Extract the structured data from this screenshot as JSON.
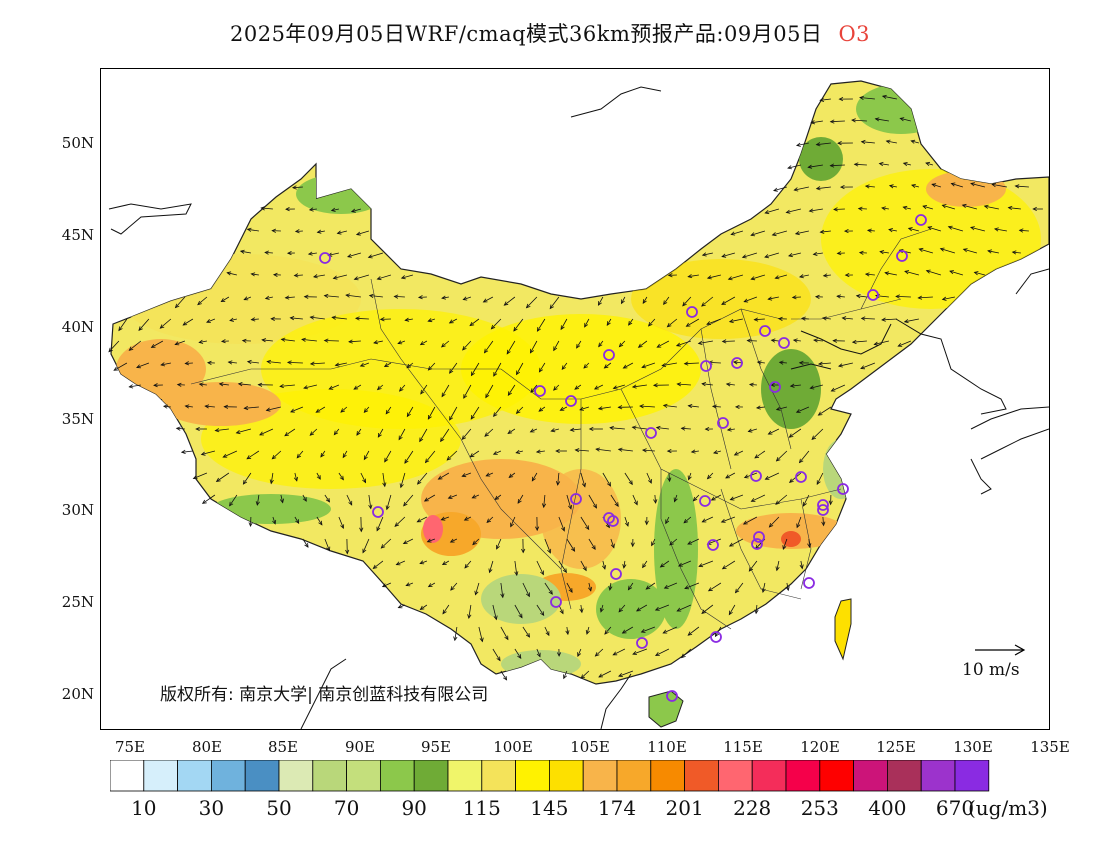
{
  "header": {
    "title": "2025年09月05日WRF/cmaq模式36km预报产品:09月05日",
    "pollutant": "O3",
    "pollutant_color": "#e8433a"
  },
  "map": {
    "lon_range": [
      73,
      135
    ],
    "lat_range": [
      18,
      54
    ],
    "lat_ticks": [
      "20N",
      "25N",
      "30N",
      "35N",
      "40N",
      "45N",
      "50N"
    ],
    "lon_ticks": [
      "75E",
      "80E",
      "85E",
      "90E",
      "95E",
      "100E",
      "105E",
      "110E",
      "115E",
      "120E",
      "125E",
      "130E",
      "135E"
    ],
    "copyright": "版权所有: 南京大学| 南京创蓝科技有限公司",
    "wind_scale_label": "10 m/s",
    "background_fill": "#f2e862",
    "monitor_marker_color": "#8a2be2"
  },
  "colorbar": {
    "unit": "(ug/m3)",
    "labels": [
      "10",
      "30",
      "50",
      "70",
      "90",
      "115",
      "145",
      "174",
      "201",
      "228",
      "253",
      "400",
      "670"
    ],
    "colors": [
      "#ffffff",
      "#d6effb",
      "#a3d7f3",
      "#6fb2dd",
      "#4a8fc3",
      "#dceab4",
      "#b9d77a",
      "#c4df7c",
      "#8cc84b",
      "#6fab36",
      "#f0f56a",
      "#f4e35a",
      "#fff200",
      "#fde000",
      "#f8b44a",
      "#f7a82a",
      "#f78a00",
      "#f05a28",
      "#ff6670",
      "#f42d5a",
      "#f5004a",
      "#fe0000",
      "#cc1479",
      "#a9305a",
      "#9c33cc",
      "#8a2be2"
    ]
  }
}
